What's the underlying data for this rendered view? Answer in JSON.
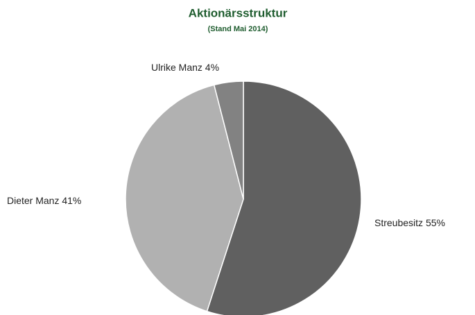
{
  "chart_data": {
    "type": "pie",
    "title": "Aktionärsstruktur",
    "subtitle": "(Stand Mai 2014)",
    "categories": [
      "Streubesitz",
      "Dieter Manz",
      "Ulrike Manz"
    ],
    "values": [
      55,
      41,
      4
    ],
    "value_labels": [
      "55%",
      "41%",
      "4%"
    ],
    "colors": [
      "#606060",
      "#b1b1b1",
      "#828282"
    ]
  }
}
